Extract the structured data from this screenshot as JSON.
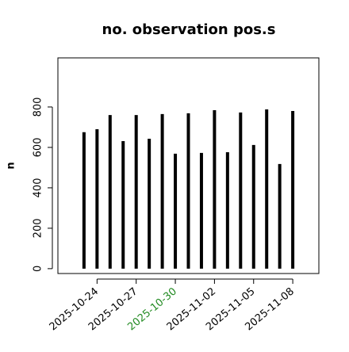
{
  "chart_data": {
    "type": "bar",
    "title": "no. observation pos.s",
    "y_label": "n",
    "x": [
      "2025-10-23",
      "2025-10-24",
      "2025-10-25",
      "2025-10-26",
      "2025-10-27",
      "2025-10-28",
      "2025-10-29",
      "2025-10-30",
      "2025-10-31",
      "2025-11-01",
      "2025-11-02",
      "2025-11-03",
      "2025-11-04",
      "2025-11-05",
      "2025-11-06",
      "2025-11-07",
      "2025-11-08"
    ],
    "values": [
      675,
      690,
      760,
      631,
      760,
      643,
      765,
      569,
      769,
      573,
      784,
      576,
      773,
      612,
      788,
      518,
      780
    ],
    "color": "#000000",
    "xlim": [
      "2025-10-21",
      "2025-11-10"
    ],
    "xticks": [
      "2025-10-24",
      "2025-10-27",
      "2025-10-30",
      "2025-11-02",
      "2025-11-05",
      "2025-11-08"
    ],
    "xtick_colors": [
      "#000000",
      "#000000",
      "#228b22",
      "#000000",
      "#000000",
      "#000000"
    ],
    "ylim": [
      -24,
      1043
    ],
    "yticks": [
      0,
      200,
      400,
      600,
      800
    ]
  }
}
